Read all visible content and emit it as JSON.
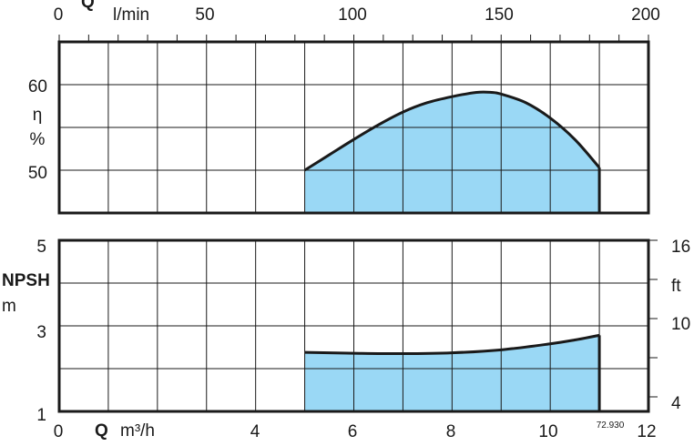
{
  "colors": {
    "fill": "#9ad8f5",
    "curve": "#1a1a1a",
    "grid": "#1a1a1a",
    "frame": "#1a1a1a"
  },
  "figure_code": "72.930",
  "chart_data": [
    {
      "type": "area",
      "panel": "efficiency",
      "top_axis": {
        "symbol": "Q",
        "unit": "l/min",
        "range": [
          0,
          200
        ],
        "ticks": [
          "0",
          "50",
          "100",
          "150",
          "200"
        ]
      },
      "y_axis": {
        "symbol": "η",
        "unit": "%",
        "range": [
          45,
          65
        ],
        "ticks": [
          "50",
          "60"
        ]
      },
      "series": [
        {
          "x": [
            5.0,
            5.5,
            6.0,
            6.5,
            7.0,
            7.5,
            8.0,
            8.5,
            8.8,
            9.0,
            9.5,
            10.0,
            10.5,
            11.0
          ],
          "values": [
            50.0,
            51.8,
            53.6,
            55.3,
            56.8,
            57.9,
            58.6,
            59.1,
            59.1,
            58.9,
            57.9,
            56.1,
            53.6,
            50.3
          ]
        }
      ],
      "grid": true
    },
    {
      "type": "area",
      "panel": "npsh",
      "x_axis": {
        "symbol": "Q",
        "unit": "m³/h",
        "range": [
          0,
          12
        ],
        "ticks": [
          "0",
          "2",
          "4",
          "6",
          "8",
          "10",
          "12"
        ]
      },
      "y_left": {
        "label": "NPSH",
        "unit": "m",
        "range": [
          1,
          5
        ],
        "ticks": [
          "1",
          "3",
          "5"
        ]
      },
      "y_right": {
        "unit": "ft",
        "ticks": [
          "4",
          "10",
          "16"
        ]
      },
      "series": [
        {
          "x": [
            5.0,
            6.0,
            7.0,
            8.0,
            9.0,
            10.0,
            10.5,
            11.0
          ],
          "values": [
            2.38,
            2.36,
            2.35,
            2.37,
            2.44,
            2.58,
            2.67,
            2.78
          ]
        }
      ],
      "grid": true
    }
  ]
}
